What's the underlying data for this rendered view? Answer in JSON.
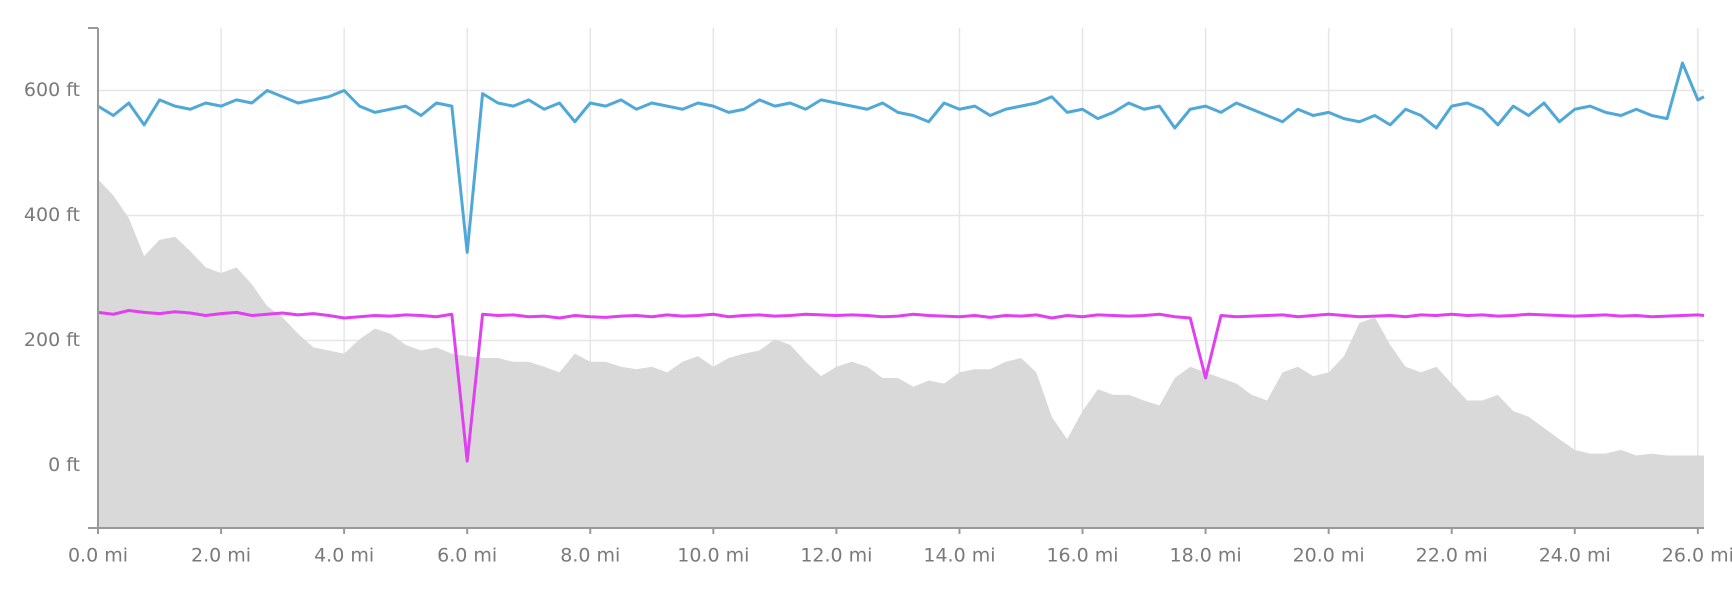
{
  "chart_data": {
    "type": "line",
    "x": [
      0,
      0.25,
      0.5,
      0.75,
      1,
      1.25,
      1.5,
      1.75,
      2,
      2.25,
      2.5,
      2.75,
      3,
      3.25,
      3.5,
      3.75,
      4,
      4.25,
      4.5,
      4.75,
      5,
      5.25,
      5.5,
      5.75,
      6,
      6.25,
      6.5,
      6.75,
      7,
      7.25,
      7.5,
      7.75,
      8,
      8.25,
      8.5,
      8.75,
      9,
      9.25,
      9.5,
      9.75,
      10,
      10.25,
      10.5,
      10.75,
      11,
      11.25,
      11.5,
      11.75,
      12,
      12.25,
      12.5,
      12.75,
      13,
      13.25,
      13.5,
      13.75,
      14,
      14.25,
      14.5,
      14.75,
      15,
      15.25,
      15.5,
      15.75,
      16,
      16.25,
      16.5,
      16.75,
      17,
      17.25,
      17.5,
      17.75,
      18,
      18.25,
      18.5,
      18.75,
      19,
      19.25,
      19.5,
      19.75,
      20,
      20.25,
      20.5,
      20.75,
      21,
      21.25,
      21.5,
      21.75,
      22,
      22.25,
      22.5,
      22.75,
      23,
      23.25,
      23.5,
      23.75,
      24,
      24.25,
      24.5,
      24.75,
      25,
      25.25,
      25.5,
      25.75,
      26,
      26.1
    ],
    "series": [
      {
        "type": "area",
        "color": "#d9d9d9",
        "values": [
          458,
          432,
          396,
          335,
          361,
          366,
          343,
          317,
          308,
          317,
          290,
          255,
          237,
          211,
          189,
          184,
          179,
          202,
          219,
          211,
          193,
          184,
          189,
          179,
          175,
          172,
          172,
          166,
          166,
          158,
          149,
          179,
          166,
          166,
          158,
          154,
          158,
          149,
          166,
          175,
          158,
          172,
          179,
          184,
          202,
          193,
          166,
          143,
          158,
          166,
          158,
          140,
          140,
          126,
          136,
          131,
          149,
          154,
          154,
          166,
          172,
          149,
          78,
          42,
          87,
          122,
          113,
          113,
          104,
          96,
          140,
          158,
          149,
          140,
          131,
          113,
          104,
          149,
          158,
          143,
          149,
          175,
          228,
          237,
          193,
          158,
          149,
          158,
          131,
          104,
          104,
          113,
          87,
          78,
          60,
          42,
          25,
          19,
          19,
          25,
          16,
          19,
          16,
          16,
          16,
          16
        ]
      },
      {
        "type": "line",
        "color": "#4fa8d8",
        "values": [
          575,
          560,
          580,
          545,
          585,
          575,
          570,
          580,
          575,
          585,
          580,
          600,
          590,
          580,
          585,
          590,
          600,
          575,
          565,
          570,
          575,
          560,
          580,
          575,
          341,
          595,
          580,
          575,
          585,
          570,
          580,
          550,
          580,
          575,
          585,
          570,
          580,
          575,
          570,
          580,
          575,
          565,
          570,
          585,
          575,
          580,
          570,
          585,
          580,
          575,
          570,
          580,
          565,
          560,
          550,
          580,
          570,
          575,
          560,
          570,
          575,
          580,
          590,
          565,
          570,
          555,
          565,
          580,
          570,
          575,
          540,
          570,
          575,
          565,
          580,
          570,
          560,
          550,
          570,
          560,
          565,
          555,
          550,
          560,
          545,
          570,
          560,
          540,
          575,
          580,
          570,
          545,
          575,
          560,
          580,
          550,
          570,
          575,
          565,
          560,
          570,
          560,
          555,
          644,
          585,
          590
        ]
      },
      {
        "type": "line",
        "color": "#e040f0",
        "values": [
          245,
          242,
          248,
          245,
          243,
          246,
          244,
          240,
          243,
          245,
          240,
          242,
          244,
          241,
          243,
          240,
          236,
          238,
          240,
          239,
          241,
          240,
          238,
          242,
          7,
          242,
          240,
          241,
          238,
          239,
          236,
          240,
          238,
          237,
          239,
          240,
          238,
          241,
          239,
          240,
          242,
          238,
          240,
          241,
          239,
          240,
          242,
          241,
          240,
          241,
          240,
          238,
          239,
          242,
          240,
          239,
          238,
          240,
          237,
          240,
          239,
          241,
          236,
          240,
          238,
          241,
          240,
          239,
          240,
          242,
          238,
          236,
          140,
          240,
          238,
          239,
          240,
          241,
          238,
          240,
          242,
          240,
          238,
          239,
          240,
          238,
          241,
          240,
          242,
          240,
          241,
          239,
          240,
          242,
          241,
          240,
          239,
          240,
          241,
          239,
          240,
          238,
          239,
          240,
          241,
          240
        ]
      }
    ],
    "xlim": [
      0,
      26.1
    ],
    "ylim": [
      -100,
      700
    ],
    "xticks": [
      {
        "value": 0,
        "label": "0.0 mi"
      },
      {
        "value": 2,
        "label": "2.0 mi"
      },
      {
        "value": 4,
        "label": "4.0 mi"
      },
      {
        "value": 6,
        "label": "6.0 mi"
      },
      {
        "value": 8,
        "label": "8.0 mi"
      },
      {
        "value": 10,
        "label": "10.0 mi"
      },
      {
        "value": 12,
        "label": "12.0 mi"
      },
      {
        "value": 14,
        "label": "14.0 mi"
      },
      {
        "value": 16,
        "label": "16.0 mi"
      },
      {
        "value": 18,
        "label": "18.0 mi"
      },
      {
        "value": 20,
        "label": "20.0 mi"
      },
      {
        "value": 22,
        "label": "22.0 mi"
      },
      {
        "value": 24,
        "label": "24.0 mi"
      },
      {
        "value": 26,
        "label": "26.0 mi"
      }
    ],
    "yticks": [
      {
        "value": 0,
        "label": "0 ft"
      },
      {
        "value": 200,
        "label": "200 ft"
      },
      {
        "value": 400,
        "label": "400 ft"
      },
      {
        "value": 600,
        "label": "600 ft"
      }
    ],
    "grid": true
  }
}
